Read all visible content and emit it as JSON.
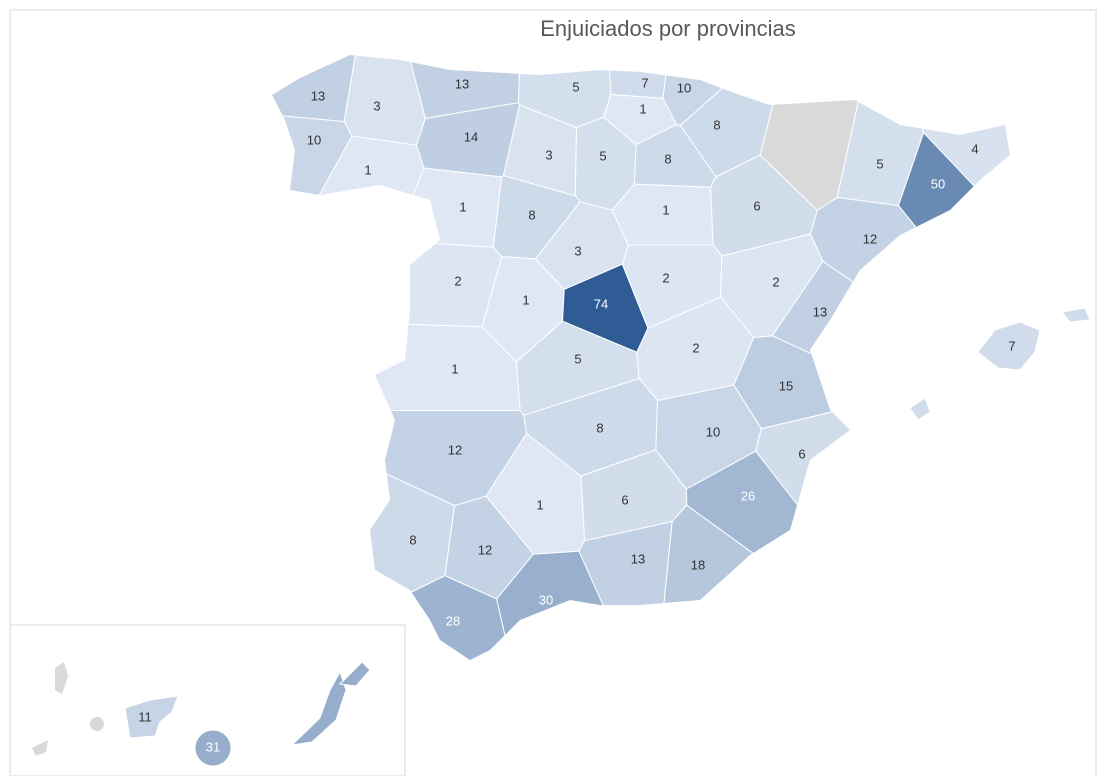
{
  "map": {
    "title": "Enjuiciados por provincias",
    "values": [
      13,
      3,
      10,
      1,
      13,
      14,
      5,
      7,
      10,
      1,
      8,
      3,
      5,
      8,
      1,
      8,
      1,
      6,
      null,
      5,
      4,
      50,
      12,
      3,
      2,
      1,
      74,
      2,
      2,
      13,
      1,
      5,
      2,
      15,
      7,
      12,
      8,
      10,
      6,
      26,
      1,
      6,
      8,
      12,
      13,
      18,
      30,
      28,
      11,
      31
    ]
  }
}
